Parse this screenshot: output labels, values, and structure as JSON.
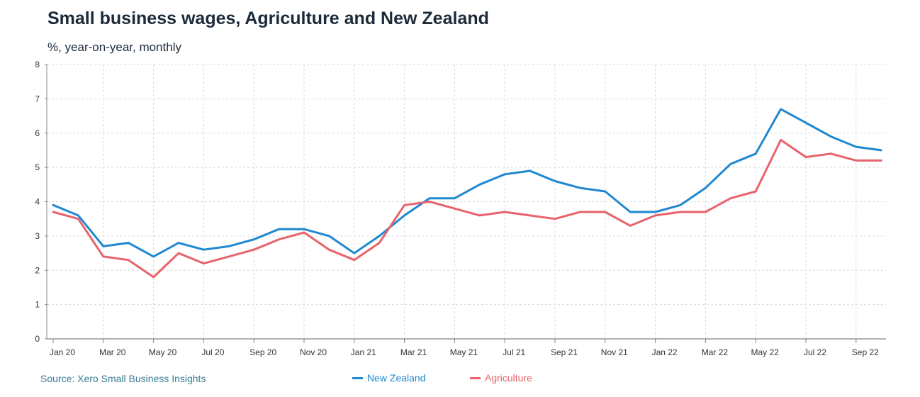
{
  "header": {
    "title": "Small business wages, Agriculture and New Zealand",
    "subtitle": "%, year-on-year, monthly"
  },
  "footer": {
    "source": "Source: Xero Small Business Insights"
  },
  "colors": {
    "new_zealand": "#1f88d1",
    "agriculture": "#e8636b",
    "grid": "#d9d9d9",
    "source_text": "#3a7c94"
  },
  "chart_data": {
    "type": "line",
    "x": [
      "2020-01",
      "2020-02",
      "2020-03",
      "2020-04",
      "2020-05",
      "2020-06",
      "2020-07",
      "2020-08",
      "2020-09",
      "2020-10",
      "2020-11",
      "2020-12",
      "2021-01",
      "2021-02",
      "2021-03",
      "2021-04",
      "2021-05",
      "2021-06",
      "2021-07",
      "2021-08",
      "2021-09",
      "2021-10",
      "2021-11",
      "2021-12",
      "2022-01",
      "2022-02",
      "2022-03",
      "2022-04",
      "2022-05",
      "2022-06",
      "2022-07",
      "2022-08",
      "2022-09",
      "2022-10"
    ],
    "xtick_labels": [
      "Jan 20",
      "Mar 20",
      "May 20",
      "Jul 20",
      "Sep 20",
      "Nov 20",
      "Jan 21",
      "Mar 21",
      "May 21",
      "Jul 21",
      "Sep 21",
      "Nov 21",
      "Jan 22",
      "Mar 22",
      "May 22",
      "Jul 22",
      "Sep 22"
    ],
    "ytick_labels": [
      "0",
      "1",
      "2",
      "3",
      "4",
      "5",
      "6",
      "7",
      "8"
    ],
    "ylim": [
      0,
      8
    ],
    "grid": true,
    "legend_position": "bottom",
    "series": [
      {
        "name": "New Zealand",
        "color": "#1f88d1",
        "values": [
          3.9,
          3.6,
          2.7,
          2.8,
          2.4,
          2.8,
          2.6,
          2.7,
          2.9,
          3.2,
          3.2,
          3.0,
          2.5,
          3.0,
          3.6,
          4.1,
          4.1,
          4.5,
          4.8,
          4.9,
          4.6,
          4.4,
          4.3,
          3.7,
          3.7,
          3.9,
          4.4,
          5.1,
          5.4,
          6.7,
          6.3,
          5.9,
          5.6,
          5.5
        ]
      },
      {
        "name": "Agriculture",
        "color": "#e8636b",
        "values": [
          3.7,
          3.5,
          2.4,
          2.3,
          1.8,
          2.5,
          2.2,
          2.4,
          2.6,
          2.9,
          3.1,
          2.6,
          2.3,
          2.8,
          3.9,
          4.0,
          3.8,
          3.6,
          3.7,
          3.6,
          3.5,
          3.7,
          3.7,
          3.3,
          3.6,
          3.7,
          3.7,
          4.1,
          4.3,
          5.8,
          5.3,
          5.4,
          5.2,
          5.2
        ]
      }
    ]
  }
}
